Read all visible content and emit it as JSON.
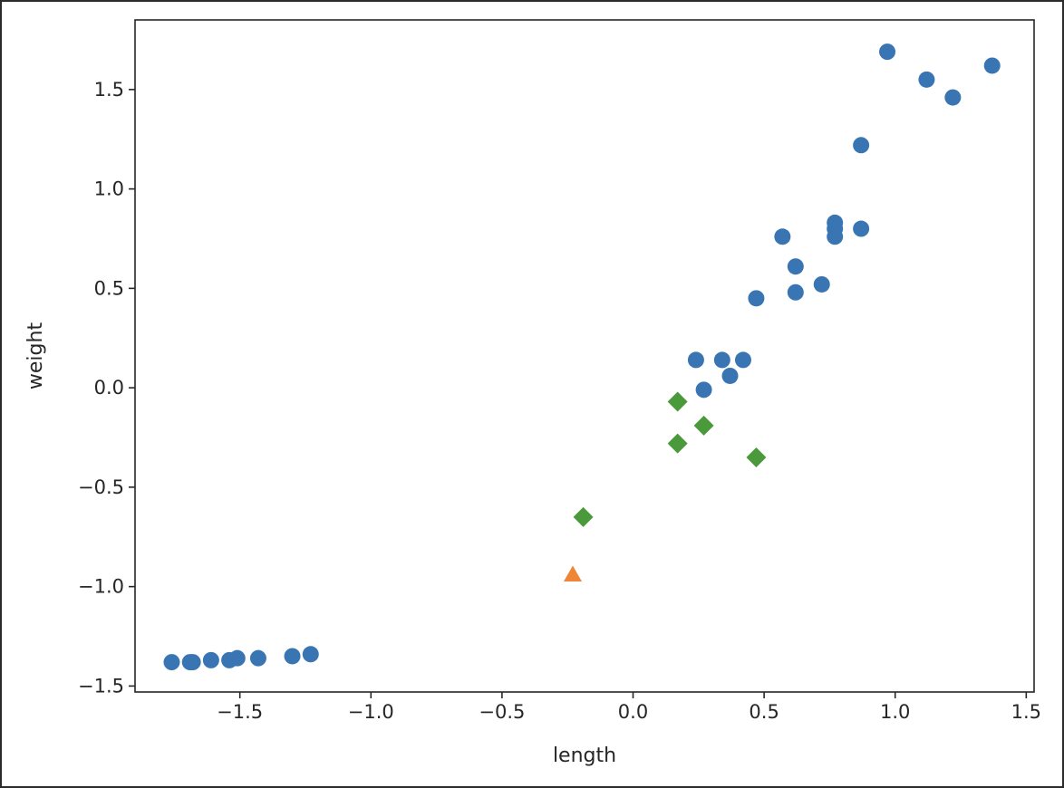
{
  "chart_data": {
    "type": "scatter",
    "title": "",
    "xlabel": "length",
    "ylabel": "weight",
    "xlim": [
      -1.9,
      1.53
    ],
    "ylim": [
      -1.53,
      1.85
    ],
    "grid": false,
    "x_ticks": [
      -1.5,
      -1.0,
      -0.5,
      0.0,
      0.5,
      1.0,
      1.5
    ],
    "x_tick_labels": [
      "−1.5",
      "−1.0",
      "−0.5",
      "0.0",
      "0.5",
      "1.0",
      "1.5"
    ],
    "y_ticks": [
      -1.5,
      -1.0,
      -0.5,
      0.0,
      0.5,
      1.0,
      1.5
    ],
    "y_tick_labels": [
      "−1.5",
      "−1.0",
      "−0.5",
      "0.0",
      "0.5",
      "1.0",
      "1.5"
    ],
    "series": [
      {
        "marker": "circle",
        "color": "#3a75b3",
        "points": [
          [
            -1.76,
            -1.38
          ],
          [
            -1.69,
            -1.38
          ],
          [
            -1.68,
            -1.38
          ],
          [
            -1.61,
            -1.37
          ],
          [
            -1.54,
            -1.37
          ],
          [
            -1.51,
            -1.36
          ],
          [
            -1.43,
            -1.36
          ],
          [
            -1.3,
            -1.35
          ],
          [
            -1.23,
            -1.34
          ],
          [
            0.24,
            0.14
          ],
          [
            0.27,
            -0.01
          ],
          [
            0.34,
            0.14
          ],
          [
            0.37,
            0.06
          ],
          [
            0.42,
            0.14
          ],
          [
            0.47,
            0.45
          ],
          [
            0.57,
            0.76
          ],
          [
            0.62,
            0.61
          ],
          [
            0.62,
            0.48
          ],
          [
            0.72,
            0.52
          ],
          [
            0.77,
            0.76
          ],
          [
            0.77,
            0.8
          ],
          [
            0.77,
            0.83
          ],
          [
            0.87,
            0.8
          ],
          [
            0.87,
            1.22
          ],
          [
            0.97,
            1.69
          ],
          [
            1.12,
            1.55
          ],
          [
            1.22,
            1.46
          ],
          [
            1.37,
            1.62
          ]
        ]
      },
      {
        "marker": "diamond",
        "color": "#4a9a3b",
        "points": [
          [
            -0.19,
            -0.65
          ],
          [
            0.17,
            -0.07
          ],
          [
            0.17,
            -0.28
          ],
          [
            0.27,
            -0.19
          ],
          [
            0.47,
            -0.35
          ]
        ]
      },
      {
        "marker": "triangle",
        "color": "#ef8536",
        "points": [
          [
            -0.23,
            -0.94
          ]
        ]
      }
    ]
  }
}
